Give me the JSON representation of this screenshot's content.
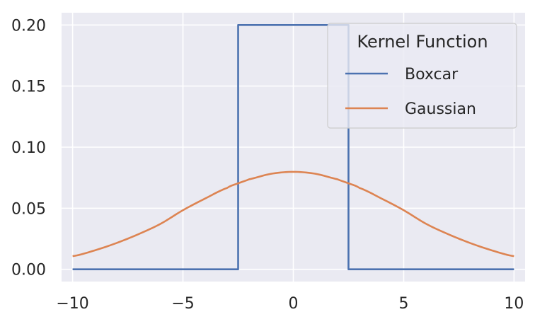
{
  "chart_data": {
    "type": "line",
    "title": "",
    "xlabel": "",
    "ylabel": "",
    "xlim": [
      -10.5,
      10.5
    ],
    "ylim": [
      -0.01,
      0.21
    ],
    "grid": true,
    "background": "#eaeaf2",
    "gridColor": "#ffffff",
    "x_ticks": [
      -10,
      -5,
      0,
      5,
      10
    ],
    "x_tick_labels": [
      "−10",
      "−5",
      "0",
      "5",
      "10"
    ],
    "y_ticks": [
      0.0,
      0.05,
      0.1,
      0.15,
      0.2
    ],
    "y_tick_labels": [
      "0.00",
      "0.05",
      "0.10",
      "0.15",
      "0.20"
    ],
    "legend": {
      "title": "Kernel Function",
      "placement": "upper right"
    },
    "series": [
      {
        "name": "Boxcar",
        "color": "#4c72b0",
        "step": true,
        "x": [
          -10,
          -2.5,
          -2.5,
          2.5,
          2.5,
          10
        ],
        "y": [
          0,
          0,
          0.2,
          0.2,
          0,
          0
        ]
      },
      {
        "name": "Gaussian",
        "color": "#dd8452",
        "x": [
          -10,
          -9,
          -8,
          -7,
          -6,
          -5,
          -4,
          -3,
          -2.5,
          -2,
          -1,
          0,
          1,
          2,
          2.5,
          3,
          4,
          5,
          6,
          7,
          8,
          9,
          10
        ],
        "y": [
          0.0108,
          0.0155,
          0.0216,
          0.0289,
          0.0374,
          0.0484,
          0.0579,
          0.0666,
          0.0704,
          0.0737,
          0.0782,
          0.0798,
          0.0782,
          0.0737,
          0.0704,
          0.0666,
          0.0579,
          0.0484,
          0.0374,
          0.0289,
          0.0216,
          0.0155,
          0.0108
        ]
      }
    ]
  }
}
